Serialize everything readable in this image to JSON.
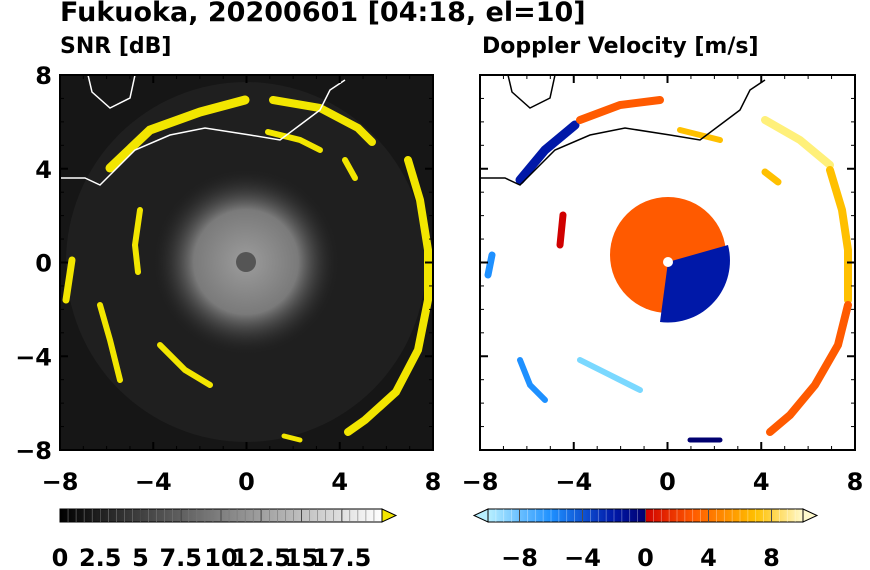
{
  "title": "Fukuoka, 20200601 [04:18, el=10]",
  "chart_data": [
    {
      "type": "heatmap",
      "title": "SNR [dB]",
      "xlim": [
        -8,
        8
      ],
      "ylim": [
        -8,
        8
      ],
      "x_ticks": [
        "−8",
        "−4",
        "0",
        "4",
        "8"
      ],
      "y_ticks": [
        "8",
        "4",
        "0",
        "−4",
        "−8"
      ],
      "colorbar": {
        "labels": [
          "0",
          "2.5",
          "5",
          "7.5",
          "10",
          "12.5",
          "15",
          "17.5"
        ],
        "extend": "max",
        "colors": [
          "#000000",
          "#ffffff",
          "#f2e600"
        ]
      }
    },
    {
      "type": "heatmap",
      "title": "Doppler Velocity [m/s]",
      "xlim": [
        -8,
        8
      ],
      "ylim": [
        -8,
        8
      ],
      "x_ticks": [
        "−8",
        "−4",
        "0",
        "4",
        "8"
      ],
      "y_ticks": [],
      "colorbar": {
        "labels": [
          "−8",
          "−4",
          "0",
          "4",
          "8"
        ],
        "extend": "both",
        "colors": [
          "#b8f0ff",
          "#1e90ff",
          "#0018a8",
          "#000070",
          "#d00000",
          "#ff5a00",
          "#ffc000",
          "#fffacd"
        ]
      }
    }
  ]
}
